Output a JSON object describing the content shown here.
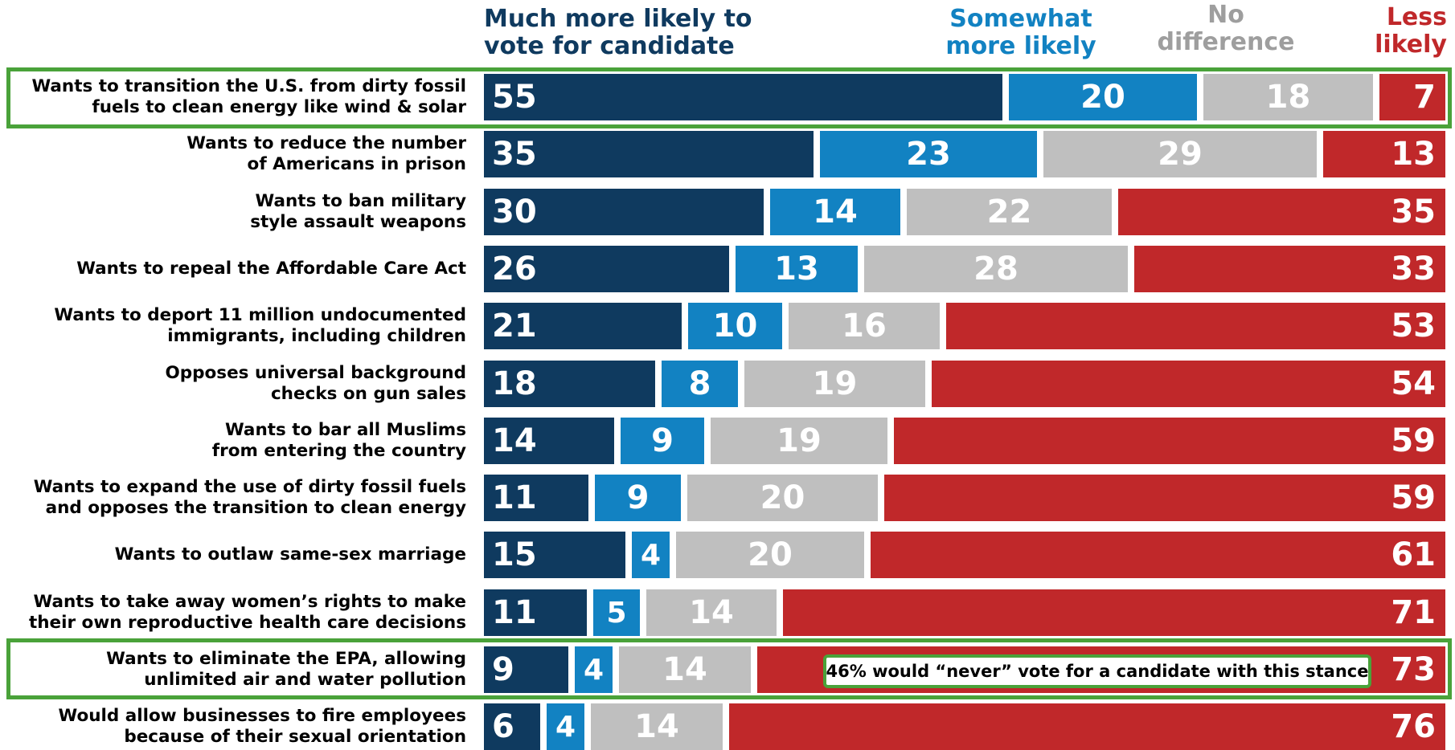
{
  "legend": {
    "much_line1": "Much more likely to",
    "much_line2": "vote for candidate",
    "some_line1": "Somewhat",
    "some_line2": "more likely",
    "nodiff_line1": "No",
    "nodiff_line2": "difference",
    "less_line1": "Less",
    "less_line2": "likely"
  },
  "colors": {
    "much": "#0f3a5f",
    "somewhat": "#1282c2",
    "no_difference": "#bfbfbf",
    "less": "#c0282a",
    "highlight": "#4aa23a"
  },
  "callout": "46% would “never” vote for a candidate with this stance",
  "chart_data": {
    "type": "bar",
    "orientation": "horizontal",
    "stacked": true,
    "xlim": [
      0,
      100
    ],
    "categories": [
      [
        "Wants to transition the U.S. from dirty fossil",
        "fuels to clean energy like wind & solar"
      ],
      [
        "Wants to reduce the number",
        "of Americans in prison"
      ],
      [
        "Wants to ban military",
        "style assault weapons"
      ],
      [
        "Wants to repeal the Affordable Care Act"
      ],
      [
        "Wants to deport 11 million undocumented",
        "immigrants, including children"
      ],
      [
        "Opposes universal background",
        "checks on gun sales"
      ],
      [
        "Wants to bar all Muslims",
        "from entering the country"
      ],
      [
        "Wants to expand the use of dirty fossil fuels",
        "and opposes the transition to clean energy"
      ],
      [
        "Wants to outlaw same-sex marriage"
      ],
      [
        "Wants to take away women’s rights to make",
        "their own reproductive health care decisions"
      ],
      [
        "Wants to eliminate the EPA, allowing",
        "unlimited air and water pollution"
      ],
      [
        "Would allow businesses to fire employees",
        "because of their sexual orientation"
      ]
    ],
    "series": [
      {
        "name": "Much more likely to vote for candidate",
        "values": [
          55,
          35,
          30,
          26,
          21,
          18,
          14,
          11,
          15,
          11,
          9,
          6
        ]
      },
      {
        "name": "Somewhat more likely",
        "values": [
          20,
          23,
          14,
          13,
          10,
          8,
          9,
          9,
          4,
          5,
          4,
          4
        ]
      },
      {
        "name": "No difference",
        "values": [
          18,
          29,
          22,
          28,
          16,
          19,
          19,
          20,
          20,
          14,
          14,
          14
        ]
      },
      {
        "name": "Less likely",
        "values": [
          7,
          13,
          35,
          33,
          53,
          54,
          59,
          59,
          61,
          71,
          73,
          76
        ]
      }
    ],
    "highlighted_rows": [
      0,
      10
    ],
    "legend_position": "top"
  }
}
